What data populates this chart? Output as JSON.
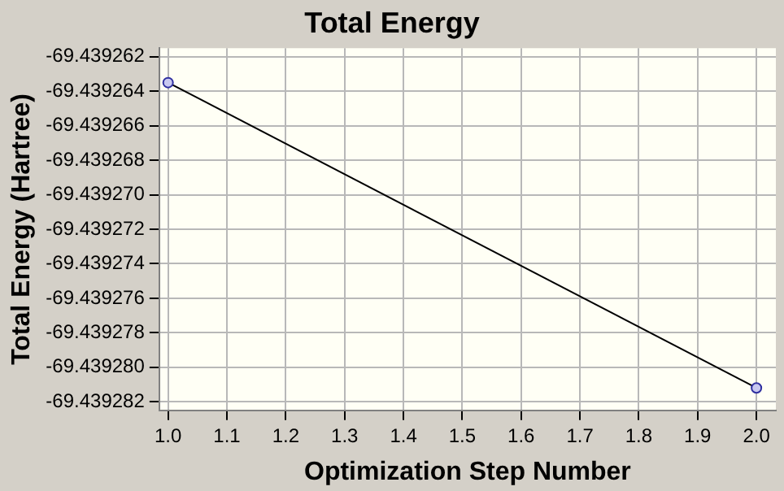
{
  "chart_data": {
    "type": "line",
    "title": "Total Energy",
    "xlabel": "Optimization Step Number",
    "ylabel": "Total Energy (Hartree)",
    "x": [
      1,
      2
    ],
    "series": [
      {
        "color": "#000000",
        "values": [
          -69.4392635,
          -69.4392812
        ]
      }
    ],
    "xlim": [
      0.985,
      2.033
    ],
    "xticks": [
      {
        "value": 1,
        "label": "1.0"
      },
      1.1,
      1.2,
      1.3,
      1.4,
      1.5,
      1.6,
      1.7,
      1.8,
      1.9,
      {
        "value": 2,
        "label": "2.0"
      }
    ],
    "ylim": [
      -69.4392825,
      -69.4392615
    ],
    "yticks": [
      -69.439262,
      -69.439264,
      -69.439266,
      -69.439268,
      {
        "value": -69.43927,
        "label": "-69.439270"
      },
      -69.439272,
      -69.439274,
      -69.439276,
      -69.439278,
      {
        "value": -69.43928,
        "label": "-69.439280"
      },
      -69.439282
    ],
    "grid": true,
    "legend": false,
    "marker": "circle",
    "line_style": "solid"
  }
}
